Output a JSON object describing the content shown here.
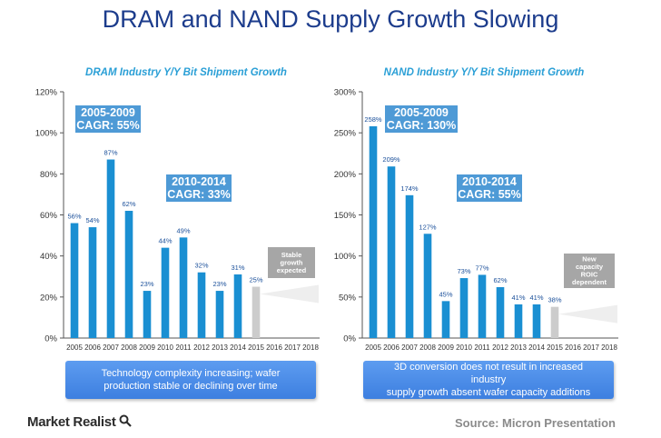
{
  "title": "DRAM and NAND Supply Growth Slowing",
  "footer": {
    "logo": "Market Realist",
    "source": "Source:  Micron Presentation"
  },
  "colors": {
    "title": "#1c3c8c",
    "panel_title": "#2a9fd6",
    "bar": "#1a8fd2",
    "projection_bar": "#cccccc",
    "cagr_box": "#4e9ad6",
    "banner": "#4a8ce8"
  },
  "chart_data": [
    {
      "type": "bar",
      "title": "DRAM Industry Y/Y Bit Shipment Growth",
      "categories": [
        "2005",
        "2006",
        "2007",
        "2008",
        "2009",
        "2010",
        "2011",
        "2012",
        "2013",
        "2014",
        "2015",
        "2016",
        "2017",
        "2018"
      ],
      "values": [
        56,
        54,
        87,
        62,
        23,
        44,
        49,
        32,
        23,
        31,
        25,
        null,
        null,
        null
      ],
      "data_labels": [
        "56%",
        "54%",
        "87%",
        "62%",
        "23%",
        "44%",
        "49%",
        "32%",
        "23%",
        "31%",
        "25%",
        "",
        "",
        ""
      ],
      "projected_from": "2015",
      "ylim": [
        0,
        120
      ],
      "yticks": [
        "0%",
        "20%",
        "40%",
        "60%",
        "80%",
        "100%",
        "120%"
      ],
      "grid": false,
      "annotations": [
        {
          "lines": [
            "2005-2009",
            "CAGR: 55%"
          ]
        },
        {
          "lines": [
            "2010-2014",
            "CAGR: 33%"
          ]
        },
        {
          "lines": [
            "Stable",
            "growth",
            "expected"
          ]
        }
      ],
      "banner": [
        "Technology complexity increasing; wafer",
        "production stable or declining over time"
      ]
    },
    {
      "type": "bar",
      "title": "NAND Industry Y/Y Bit Shipment Growth",
      "categories": [
        "2005",
        "2006",
        "2007",
        "2008",
        "2009",
        "2010",
        "2011",
        "2012",
        "2013",
        "2014",
        "2015",
        "2016",
        "2017",
        "2018"
      ],
      "values": [
        258,
        209,
        174,
        127,
        45,
        73,
        77,
        62,
        41,
        41,
        38,
        null,
        null,
        null
      ],
      "data_labels": [
        "258%",
        "209%",
        "174%",
        "127%",
        "45%",
        "73%",
        "77%",
        "62%",
        "41%",
        "41%",
        "38%",
        "",
        "",
        ""
      ],
      "projected_from": "2015",
      "ylim": [
        0,
        300
      ],
      "yticks": [
        "0%",
        "50%",
        "100%",
        "150%",
        "200%",
        "250%",
        "300%"
      ],
      "grid": false,
      "annotations": [
        {
          "lines": [
            "2005-2009",
            "CAGR: 130%"
          ]
        },
        {
          "lines": [
            "2010-2014",
            "CAGR: 55%"
          ]
        },
        {
          "lines": [
            "New",
            "capacity",
            "ROIC",
            "dependent"
          ]
        }
      ],
      "banner": [
        "3D conversion does not result in increased industry",
        "supply growth absent wafer capacity additions"
      ]
    }
  ]
}
